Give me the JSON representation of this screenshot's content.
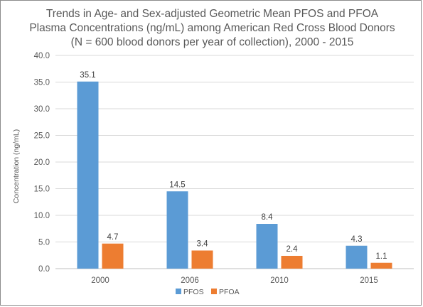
{
  "chart_data": {
    "type": "bar",
    "title_lines": [
      "Trends in Age- and Sex-adjusted Geometric Mean PFOS and PFOA",
      "Plasma Concentrations (ng/mL) among American Red Cross Blood Donors",
      "(N = 600  blood donors per year of collection), 2000 - 2015"
    ],
    "xlabel": "",
    "ylabel": "Concentration (ng/mL)",
    "categories": [
      "2000",
      "2006",
      "2010",
      "2015"
    ],
    "series": [
      {
        "name": "PFOS",
        "color": "#5b9bd5",
        "values": [
          35.1,
          14.5,
          8.4,
          4.3
        ]
      },
      {
        "name": "PFOA",
        "color": "#ed7d31",
        "values": [
          4.7,
          3.4,
          2.4,
          1.1
        ]
      }
    ],
    "ylim": [
      0,
      40
    ],
    "ytick_step": 5,
    "ytick_decimals": 1,
    "grid": true,
    "legend_position": "bottom-center",
    "data_labels": true
  }
}
